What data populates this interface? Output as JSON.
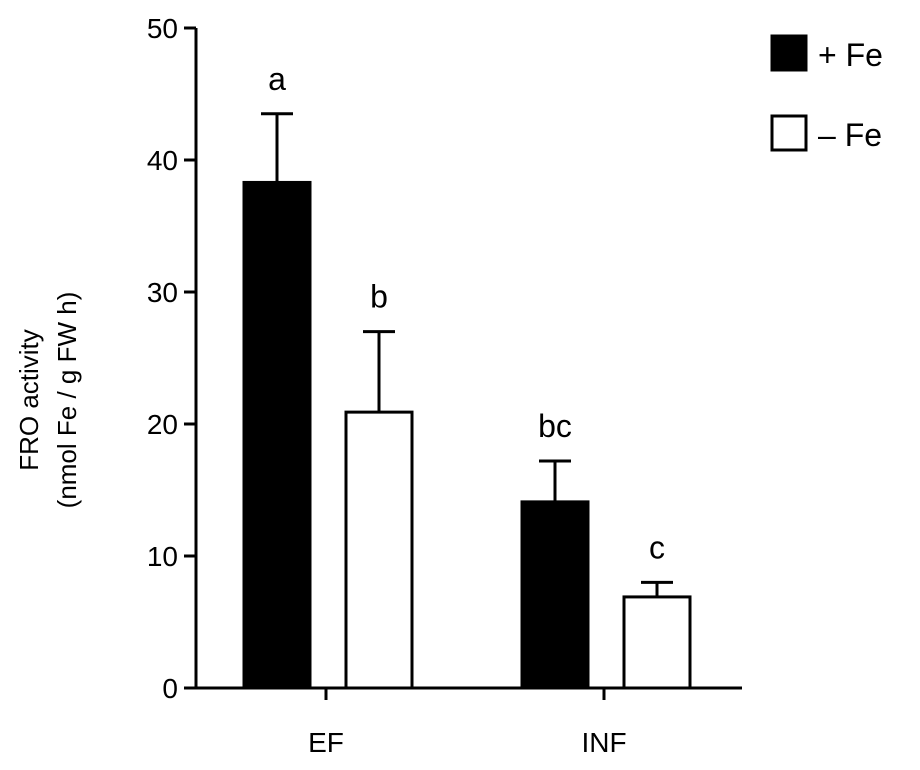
{
  "chart_data": {
    "type": "bar",
    "categories": [
      "EF",
      "INF"
    ],
    "series": [
      {
        "name": "+ Fe",
        "color": "#000000",
        "values": [
          38.3,
          14.1
        ],
        "errors": [
          5.2,
          3.1
        ],
        "labels": [
          "a",
          "bc"
        ]
      },
      {
        "name": "– Fe",
        "color": "#ffffff",
        "values": [
          20.9,
          6.9
        ],
        "errors": [
          6.1,
          1.1
        ],
        "labels": [
          "b",
          "c"
        ]
      }
    ],
    "ylabel_lines": [
      "FRO activity",
      "(nmol Fe / g FW h)"
    ],
    "xlabel": "",
    "ylim": [
      0,
      50
    ],
    "yticks": [
      0,
      10,
      20,
      30,
      40,
      50
    ],
    "legend_position": "top-right",
    "grid": false
  }
}
